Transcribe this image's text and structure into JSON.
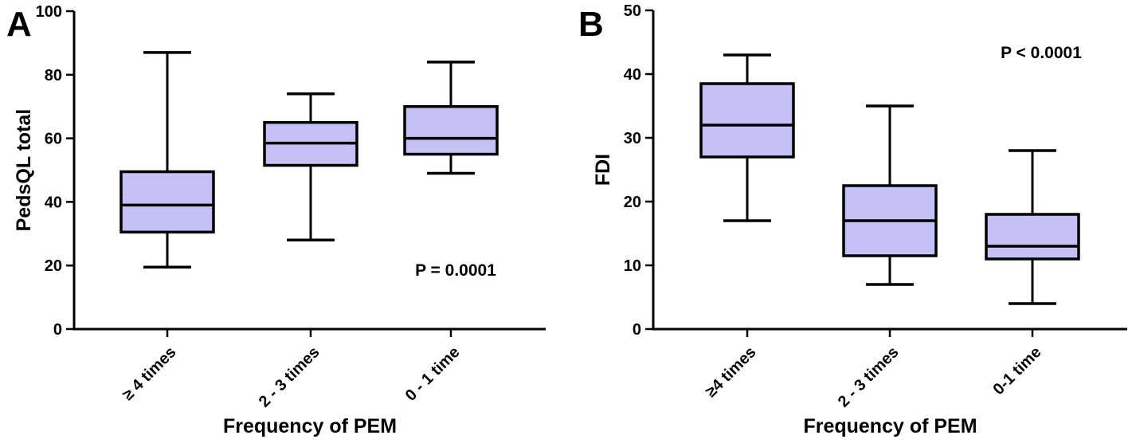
{
  "figure": {
    "description": "Two-panel box-and-whisker figure comparing scores across frequency of PEM groups",
    "background": "#ffffff"
  },
  "colors": {
    "box_fill": "#c4c2f4",
    "stroke": "#000000",
    "text": "#000000"
  },
  "chart_data": [
    {
      "type": "box",
      "panel_label": "A",
      "title": "",
      "xlabel": "Frequency of PEM",
      "ylabel": "PedsQL total",
      "annotation": "P = 0.0001",
      "ylim": [
        0,
        100
      ],
      "ytick_step": 20,
      "grid": false,
      "legend": "none",
      "categories": [
        "≥ 4 times",
        "2 - 3 times",
        "0 - 1 time"
      ],
      "boxes": [
        {
          "whislo": 19.5,
          "q1": 30.5,
          "med": 39,
          "q3": 49.5,
          "whishi": 87
        },
        {
          "whislo": 28,
          "q1": 51.5,
          "med": 58.5,
          "q3": 65,
          "whishi": 74
        },
        {
          "whislo": 49,
          "q1": 55,
          "med": 60,
          "q3": 70,
          "whishi": 84
        }
      ]
    },
    {
      "type": "box",
      "panel_label": "B",
      "title": "",
      "xlabel": "Frequency of PEM",
      "ylabel": "FDI",
      "annotation": "P < 0.0001",
      "ylim": [
        0,
        50
      ],
      "ytick_step": 10,
      "grid": false,
      "legend": "none",
      "categories": [
        "≥4 times",
        "2 - 3 times",
        "0-1 time"
      ],
      "boxes": [
        {
          "whislo": 17,
          "q1": 27,
          "med": 32,
          "q3": 38.5,
          "whishi": 43
        },
        {
          "whislo": 7,
          "q1": 11.5,
          "med": 17,
          "q3": 22.5,
          "whishi": 35
        },
        {
          "whislo": 4,
          "q1": 11,
          "med": 13,
          "q3": 18,
          "whishi": 28
        }
      ]
    }
  ]
}
